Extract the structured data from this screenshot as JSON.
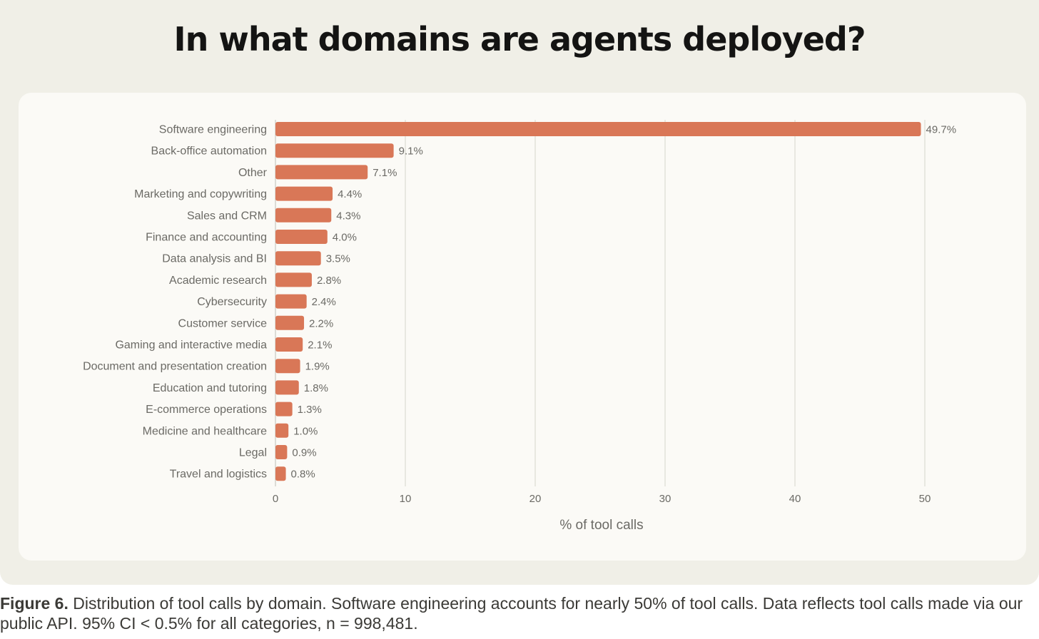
{
  "header": {
    "title": "In what domains are agents deployed?"
  },
  "caption": {
    "label": "Figure 6.",
    "text": " Distribution of tool calls by domain. Software engineering accounts for nearly 50% of tool calls. Data reflects tool calls made via our public API. 95% CI < 0.5% for all categories, n = 998,481."
  },
  "colors": {
    "bar": "#d97757",
    "grid": "#dcdbd3",
    "label": "#6b6a65",
    "panel": "#f0efe7",
    "card": "#fbfaf6"
  },
  "chart_data": {
    "type": "bar",
    "orientation": "horizontal",
    "title": "",
    "xlabel": "% of tool calls",
    "ylabel": "",
    "xlim": [
      0,
      50
    ],
    "xticks": [
      0,
      10,
      20,
      30,
      40,
      50
    ],
    "grid": "vertical",
    "categories": [
      "Software engineering",
      "Back-office automation",
      "Other",
      "Marketing and copywriting",
      "Sales and CRM",
      "Finance and accounting",
      "Data analysis and BI",
      "Academic research",
      "Cybersecurity",
      "Customer service",
      "Gaming and interactive media",
      "Document and presentation creation",
      "Education and tutoring",
      "E-commerce operations",
      "Medicine and healthcare",
      "Legal",
      "Travel and logistics"
    ],
    "values": [
      49.7,
      9.1,
      7.1,
      4.4,
      4.3,
      4.0,
      3.5,
      2.8,
      2.4,
      2.2,
      2.1,
      1.9,
      1.8,
      1.3,
      1.0,
      0.9,
      0.8
    ],
    "value_labels": [
      "49.7%",
      "9.1%",
      "7.1%",
      "4.4%",
      "4.3%",
      "4.0%",
      "3.5%",
      "2.8%",
      "2.4%",
      "2.2%",
      "2.1%",
      "1.9%",
      "1.8%",
      "1.3%",
      "1.0%",
      "0.9%",
      "0.8%"
    ]
  }
}
